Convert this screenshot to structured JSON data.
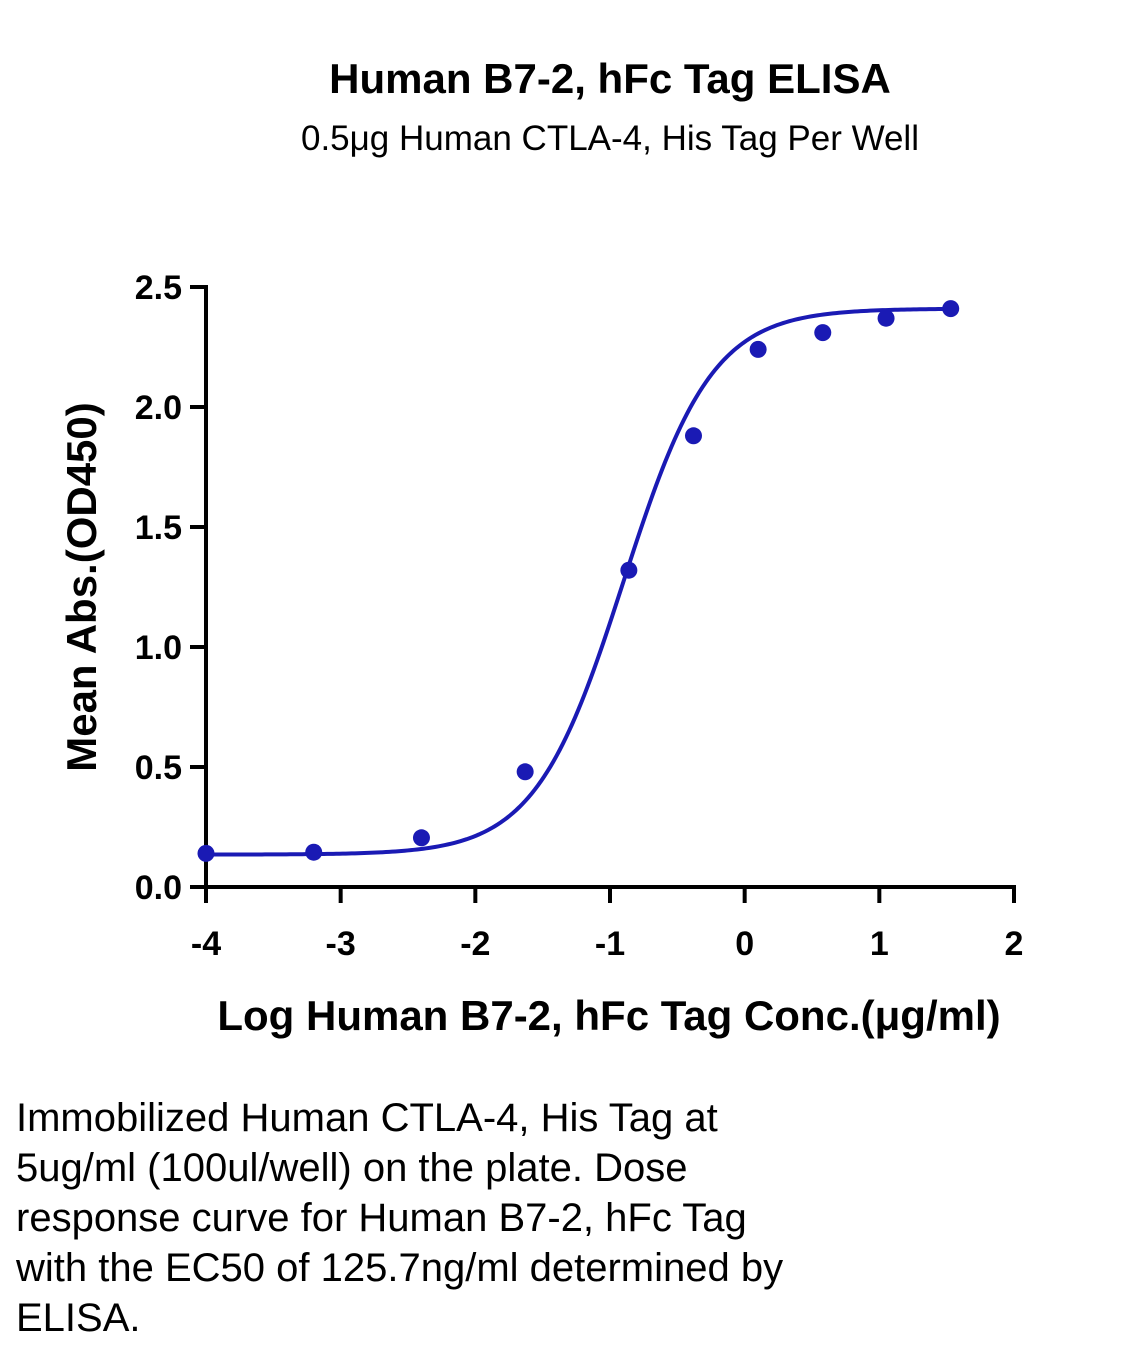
{
  "chart_data": {
    "type": "scatter",
    "title": "Human B7-2, hFc Tag ELISA",
    "subtitle": "0.5μg Human CTLA-4, His Tag Per Well",
    "xlabel": "Log Human B7-2, hFc Tag Conc.(μg/ml)",
    "ylabel": "Mean Abs.(OD450)",
    "xlim": [
      -4,
      2
    ],
    "ylim": [
      0,
      2.5
    ],
    "x_ticks": [
      -4,
      -3,
      -2,
      -1,
      0,
      1,
      2
    ],
    "x_tick_labels": [
      "-4",
      "-3",
      "-2",
      "-1",
      "0",
      "1",
      "2"
    ],
    "y_ticks": [
      0,
      0.5,
      1,
      1.5,
      2,
      2.5
    ],
    "y_tick_labels": [
      "0.0",
      "0.5",
      "1.0",
      "1.5",
      "2.0",
      "2.5"
    ],
    "grid": false,
    "legend": "none",
    "series": [
      {
        "x": [
          -4.0,
          -3.2,
          -2.4,
          -1.63,
          -0.86,
          -0.38,
          0.1,
          0.58,
          1.05,
          1.53
        ],
        "y": [
          0.14,
          0.145,
          0.205,
          0.48,
          1.32,
          1.88,
          2.24,
          2.31,
          2.37,
          2.41
        ],
        "color": "#1a1ab4",
        "marker": "circle",
        "fit_line": "four-parameter logistic",
        "fit_params": {
          "bottom": 0.135,
          "top": 2.41,
          "log_ec50": -0.9,
          "hill": 1.32
        }
      }
    ]
  },
  "caption": "Immobilized Human CTLA-4, His Tag at\n5ug/ml (100ul/well) on the plate. Dose\nresponse curve for Human B7-2, hFc Tag\nwith the EC50 of 125.7ng/ml determined by\nELISA."
}
